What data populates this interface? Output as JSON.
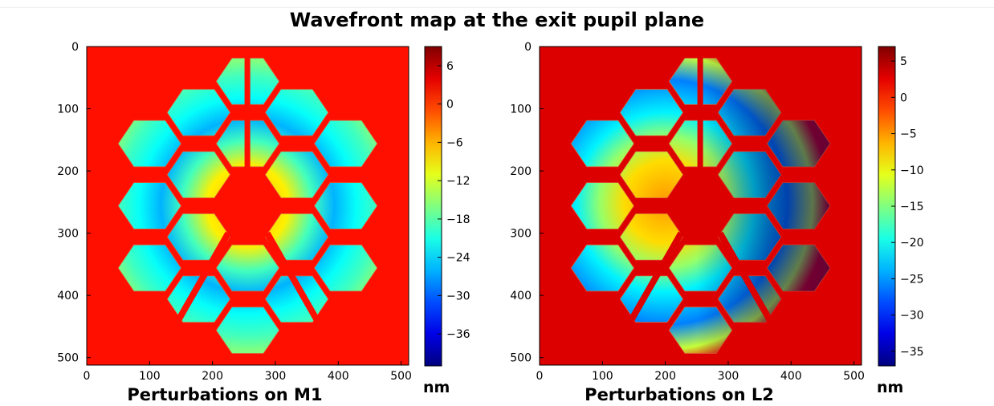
{
  "figure": {
    "title": "Wavefront map at the exit pupil plane",
    "unit_label": "nm"
  },
  "chart_data": [
    {
      "type": "heatmap",
      "title": "Perturbations on M1",
      "x_ticks": [
        0,
        100,
        200,
        300,
        400,
        500
      ],
      "y_ticks": [
        0,
        100,
        200,
        300,
        400,
        500
      ],
      "xlim": [
        0,
        512
      ],
      "ylim": [
        512,
        0
      ],
      "colormap": "jet",
      "colorbar": {
        "range": [
          -41,
          9
        ],
        "ticks": [
          6,
          0,
          -6,
          -12,
          -18,
          -24,
          -30,
          -36
        ],
        "label": "nm"
      },
      "background_value": 2,
      "pupil": {
        "center": [
          256,
          256
        ],
        "description": "18 hexagonal mirror segments with central obscuration and spider struts"
      }
    },
    {
      "type": "heatmap",
      "title": "Perturbations on L2",
      "x_ticks": [
        0,
        100,
        200,
        300,
        400,
        500
      ],
      "y_ticks": [
        0,
        100,
        200,
        300,
        400,
        500
      ],
      "xlim": [
        0,
        512
      ],
      "ylim": [
        512,
        0
      ],
      "colormap": "jet",
      "colorbar": {
        "range": [
          -37,
          7
        ],
        "ticks": [
          5,
          0,
          -5,
          -10,
          -15,
          -20,
          -25,
          -30,
          -35
        ],
        "label": "nm"
      },
      "background_value": 3,
      "pupil": {
        "center": [
          256,
          256
        ],
        "description": "18 hexagonal mirror segments with central obscuration and spider struts"
      }
    }
  ]
}
